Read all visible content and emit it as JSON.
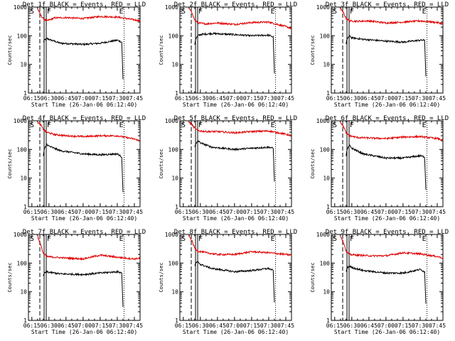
{
  "figure": {
    "x_tick_labels": [
      "06:15",
      "06:30",
      "06:45",
      "07:00",
      "07:15",
      "07:30",
      "07:45"
    ],
    "y_tick_labels": [
      "1",
      "10",
      "100",
      "1000"
    ],
    "ylabel": "Counts/sec",
    "xlabel": "Start Time (26-Jan-06 06:12:40)",
    "marker_labels": [
      "S",
      "F",
      "E"
    ],
    "colors": {
      "events": "#000000",
      "lld": "#e00000",
      "axes": "#000000"
    }
  },
  "chart_data": [
    {
      "type": "line",
      "title": "Det 1f BLACK = Events, RED = LLD",
      "xlabel": "Start Time (26-Jan-06 06:12:40)",
      "ylabel": "Counts/sec",
      "ylim": [
        1,
        1000
      ],
      "yscale": "log",
      "xlim": [
        "06:12",
        "07:50"
      ],
      "series": [
        {
          "name": "Events",
          "color": "#000000",
          "x": [
            "06:25",
            "06:26",
            "06:28",
            "06:30",
            "06:40",
            "07:00",
            "07:15",
            "07:30",
            "07:34",
            "07:35"
          ],
          "values": [
            60,
            70,
            80,
            75,
            55,
            50,
            55,
            70,
            60,
            3
          ]
        },
        {
          "name": "LLD",
          "color": "#e00000",
          "x": [
            "06:20",
            "06:23",
            "06:25",
            "06:28",
            "06:35",
            "06:45",
            "07:00",
            "07:15",
            "07:30",
            "07:45",
            "07:50"
          ],
          "values": [
            900,
            500,
            400,
            330,
            420,
            430,
            400,
            470,
            450,
            360,
            330
          ]
        }
      ]
    },
    {
      "type": "line",
      "title": "Det 2f BLACK = Events, RED = LLD",
      "xlabel": "Start Time (26-Jan-06 06:12:40)",
      "ylabel": "Counts/sec",
      "ylim": [
        1,
        1000
      ],
      "yscale": "log",
      "xlim": [
        "06:12",
        "07:50"
      ],
      "series": [
        {
          "name": "Events",
          "color": "#000000",
          "x": [
            "06:25",
            "06:26",
            "06:28",
            "06:30",
            "06:40",
            "07:00",
            "07:15",
            "07:30",
            "07:34",
            "07:35"
          ],
          "values": [
            50,
            80,
            100,
            110,
            120,
            110,
            100,
            105,
            90,
            5
          ]
        },
        {
          "name": "LLD",
          "color": "#e00000",
          "x": [
            "06:20",
            "06:23",
            "06:25",
            "06:28",
            "06:35",
            "06:45",
            "07:00",
            "07:15",
            "07:30",
            "07:45",
            "07:50"
          ],
          "values": [
            900,
            600,
            350,
            280,
            260,
            280,
            250,
            290,
            300,
            210,
            180
          ]
        }
      ]
    },
    {
      "type": "line",
      "title": "Det 3f BLACK = Events, RED = LLD",
      "xlabel": "Start Time (26-Jan-06 06:12:40)",
      "ylabel": "Counts/sec",
      "ylim": [
        1,
        1000
      ],
      "yscale": "log",
      "xlim": [
        "06:12",
        "07:50"
      ],
      "series": [
        {
          "name": "Events",
          "color": "#000000",
          "x": [
            "06:25",
            "06:26",
            "06:28",
            "06:30",
            "06:40",
            "07:00",
            "07:15",
            "07:30",
            "07:34",
            "07:35"
          ],
          "values": [
            50,
            80,
            100,
            85,
            75,
            65,
            60,
            70,
            70,
            4
          ]
        },
        {
          "name": "LLD",
          "color": "#e00000",
          "x": [
            "06:20",
            "06:23",
            "06:25",
            "06:28",
            "06:35",
            "06:45",
            "07:00",
            "07:15",
            "07:30",
            "07:45",
            "07:50"
          ],
          "values": [
            900,
            600,
            400,
            330,
            320,
            330,
            280,
            300,
            330,
            290,
            260
          ]
        }
      ]
    },
    {
      "type": "line",
      "title": "Det 4f BLACK = Events, RED = LLD",
      "xlabel": "Start Time (26-Jan-06 06:12:40)",
      "ylabel": "Counts/sec",
      "ylim": [
        1,
        1000
      ],
      "yscale": "log",
      "xlim": [
        "06:12",
        "07:50"
      ],
      "series": [
        {
          "name": "Events",
          "color": "#000000",
          "x": [
            "06:25",
            "06:26",
            "06:28",
            "06:30",
            "06:40",
            "07:00",
            "07:15",
            "07:30",
            "07:34",
            "07:35"
          ],
          "values": [
            60,
            100,
            150,
            130,
            90,
            70,
            65,
            70,
            55,
            3
          ]
        },
        {
          "name": "LLD",
          "color": "#e00000",
          "x": [
            "06:20",
            "06:23",
            "06:25",
            "06:28",
            "06:35",
            "06:45",
            "07:00",
            "07:15",
            "07:30",
            "07:45",
            "07:50"
          ],
          "values": [
            900,
            700,
            500,
            400,
            330,
            300,
            280,
            300,
            300,
            230,
            200
          ]
        }
      ]
    },
    {
      "type": "line",
      "title": "Det 5f BLACK = Events, RED = LLD",
      "xlabel": "Start Time (26-Jan-06 06:12:40)",
      "ylabel": "Counts/sec",
      "ylim": [
        1,
        1000
      ],
      "yscale": "log",
      "xlim": [
        "06:12",
        "07:50"
      ],
      "series": [
        {
          "name": "Events",
          "color": "#000000",
          "x": [
            "06:25",
            "06:26",
            "06:28",
            "06:30",
            "06:40",
            "07:00",
            "07:15",
            "07:30",
            "07:34",
            "07:35"
          ],
          "values": [
            130,
            150,
            200,
            170,
            120,
            100,
            110,
            120,
            110,
            8
          ]
        },
        {
          "name": "LLD",
          "color": "#e00000",
          "x": [
            "06:20",
            "06:23",
            "06:25",
            "06:28",
            "06:35",
            "06:45",
            "07:00",
            "07:15",
            "07:30",
            "07:45",
            "07:50"
          ],
          "values": [
            900,
            700,
            550,
            450,
            420,
            420,
            380,
            420,
            440,
            340,
            300
          ]
        }
      ]
    },
    {
      "type": "line",
      "title": "Det 6f BLACK = Events, RED = LLD",
      "xlabel": "Start Time (26-Jan-06 06:12:40)",
      "ylabel": "Counts/sec",
      "ylim": [
        1,
        1000
      ],
      "yscale": "log",
      "xlim": [
        "06:12",
        "07:50"
      ],
      "series": [
        {
          "name": "Events",
          "color": "#000000",
          "x": [
            "06:25",
            "06:26",
            "06:28",
            "06:30",
            "06:40",
            "07:00",
            "07:15",
            "07:30",
            "07:34",
            "07:35"
          ],
          "values": [
            60,
            100,
            140,
            110,
            70,
            50,
            50,
            60,
            55,
            4
          ]
        },
        {
          "name": "LLD",
          "color": "#e00000",
          "x": [
            "06:20",
            "06:23",
            "06:25",
            "06:28",
            "06:35",
            "06:45",
            "07:00",
            "07:15",
            "07:30",
            "07:45",
            "07:50"
          ],
          "values": [
            900,
            600,
            380,
            300,
            260,
            250,
            240,
            270,
            280,
            240,
            210
          ]
        }
      ]
    },
    {
      "type": "line",
      "title": "Det 7f BLACK = Events, RED = LLD",
      "xlabel": "Start Time (26-Jan-06 06:12:40)",
      "ylabel": "Counts/sec",
      "ylim": [
        1,
        1000
      ],
      "yscale": "log",
      "xlim": [
        "06:12",
        "07:50"
      ],
      "series": [
        {
          "name": "Events",
          "color": "#000000",
          "x": [
            "06:25",
            "06:26",
            "06:28",
            "06:30",
            "06:40",
            "07:00",
            "07:15",
            "07:30",
            "07:34",
            "07:35"
          ],
          "values": [
            35,
            45,
            50,
            48,
            42,
            40,
            45,
            50,
            45,
            3
          ]
        },
        {
          "name": "LLD",
          "color": "#e00000",
          "x": [
            "06:20",
            "06:23",
            "06:25",
            "06:28",
            "06:35",
            "06:45",
            "07:00",
            "07:15",
            "07:30",
            "07:45",
            "07:50"
          ],
          "values": [
            900,
            400,
            220,
            170,
            160,
            150,
            140,
            190,
            160,
            140,
            150
          ]
        }
      ]
    },
    {
      "type": "line",
      "title": "Det 8f BLACK = Events, RED = LLD",
      "xlabel": "Start Time (26-Jan-06 06:12:40)",
      "ylabel": "Counts/sec",
      "ylim": [
        1,
        1000
      ],
      "yscale": "log",
      "xlim": [
        "06:12",
        "07:50"
      ],
      "series": [
        {
          "name": "Events",
          "color": "#000000",
          "x": [
            "06:25",
            "06:26",
            "06:28",
            "06:30",
            "06:40",
            "07:00",
            "07:15",
            "07:30",
            "07:34",
            "07:35"
          ],
          "values": [
            80,
            100,
            110,
            90,
            65,
            50,
            55,
            65,
            55,
            4
          ]
        },
        {
          "name": "LLD",
          "color": "#e00000",
          "x": [
            "06:20",
            "06:23",
            "06:25",
            "06:28",
            "06:35",
            "06:45",
            "07:00",
            "07:15",
            "07:30",
            "07:45",
            "07:50"
          ],
          "values": [
            900,
            550,
            330,
            260,
            230,
            200,
            200,
            250,
            230,
            200,
            190
          ]
        }
      ]
    },
    {
      "type": "line",
      "title": "Det 9f BLACK = Events, RED = LLD",
      "xlabel": "Start Time (26-Jan-06 06:12:40)",
      "ylabel": "Counts/sec",
      "ylim": [
        1,
        1000
      ],
      "yscale": "log",
      "xlim": [
        "06:12",
        "07:50"
      ],
      "series": [
        {
          "name": "Events",
          "color": "#000000",
          "x": [
            "06:25",
            "06:26",
            "06:28",
            "06:30",
            "06:40",
            "07:00",
            "07:15",
            "07:30",
            "07:34",
            "07:35"
          ],
          "values": [
            50,
            70,
            80,
            70,
            55,
            45,
            45,
            60,
            50,
            4
          ]
        },
        {
          "name": "LLD",
          "color": "#e00000",
          "x": [
            "06:20",
            "06:23",
            "06:25",
            "06:28",
            "06:35",
            "06:45",
            "07:00",
            "07:15",
            "07:30",
            "07:45",
            "07:50"
          ],
          "values": [
            900,
            500,
            260,
            200,
            190,
            180,
            180,
            230,
            210,
            170,
            150
          ]
        }
      ]
    }
  ]
}
